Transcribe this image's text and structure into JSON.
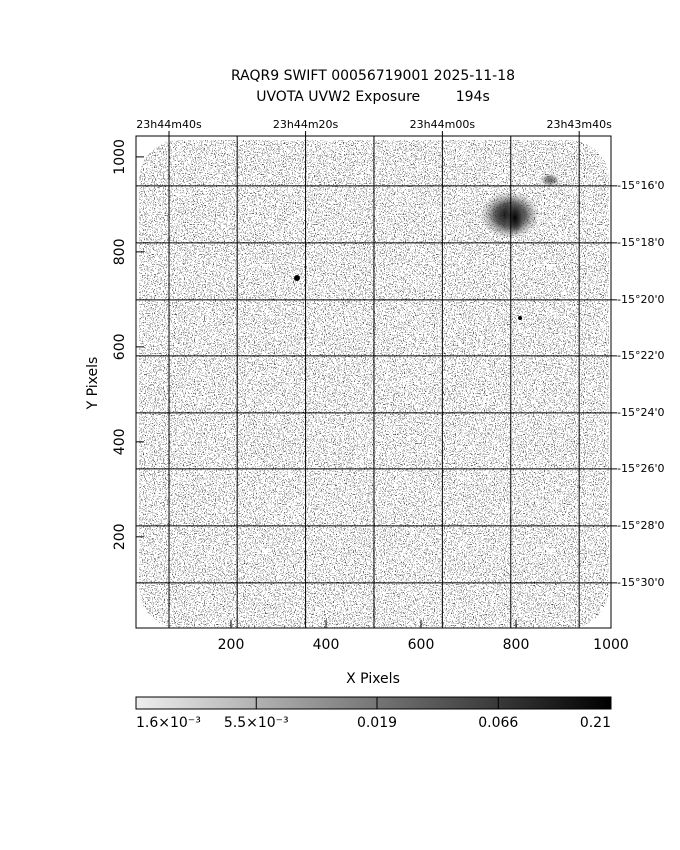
{
  "chart_data": {
    "type": "image",
    "title": "RAQR9 SWIFT 00056719001 2025-11-18",
    "subtitle": "UVOTA UVW2 Exposure        194s",
    "x_label": "X Pixels",
    "y_label": "Y Pixels",
    "xlim": [
      0,
      1000
    ],
    "ylim": [
      8,
      1044
    ],
    "xticks": [
      200,
      400,
      600,
      800,
      1000
    ],
    "yticks": [
      200,
      400,
      600,
      800,
      1000
    ],
    "ra_ticks": [
      {
        "value": 69.5,
        "label": "23h44m40s"
      },
      {
        "value": 357,
        "label": "23h44m20s"
      },
      {
        "value": 645,
        "label": "23h44m00s"
      },
      {
        "value": 933,
        "label": "23h43m40s"
      }
    ],
    "ra_grid": [
      69.5,
      213,
      357,
      501,
      645,
      789,
      933
    ],
    "dec_ticks": [
      {
        "value": 939,
        "label": "-15°16'0"
      },
      {
        "value": 819,
        "label": "-15°18'0"
      },
      {
        "value": 699,
        "label": "-15°20'0"
      },
      {
        "value": 581,
        "label": "-15°22'0"
      },
      {
        "value": 461,
        "label": "-15°24'0"
      },
      {
        "value": 343,
        "label": "-15°26'0"
      },
      {
        "value": 223,
        "label": "-15°28'0"
      },
      {
        "value": 103,
        "label": "-15°30'0"
      }
    ],
    "colorbar": {
      "scale": "log",
      "clim": [
        0.0016,
        0.21
      ],
      "ticks": [
        {
          "value": 0.0016,
          "label": "1.6×10⁻³"
        },
        {
          "value": 0.0055,
          "label": "5.5×10⁻³"
        },
        {
          "value": 0.019,
          "label": "0.019"
        },
        {
          "value": 0.066,
          "label": "0.066"
        },
        {
          "value": 0.21,
          "label": "0.21"
        }
      ]
    }
  }
}
